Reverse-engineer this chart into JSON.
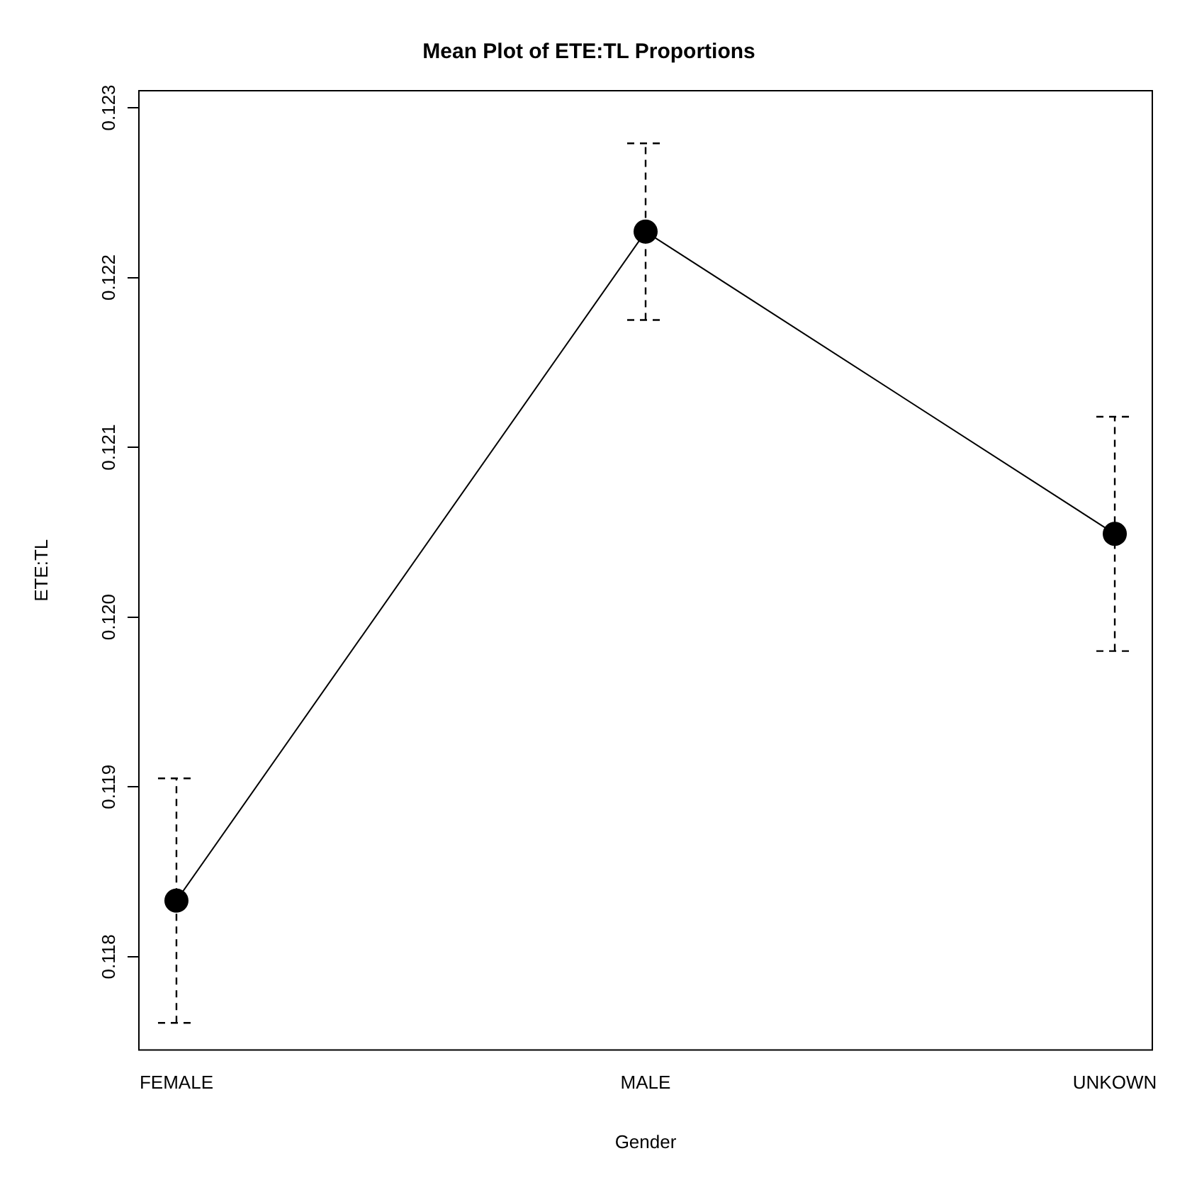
{
  "chart_data": {
    "type": "line",
    "title": "Mean Plot of ETE:TL Proportions",
    "xlabel": "Gender",
    "ylabel": "ETE:TL",
    "categories": [
      "FEMALE",
      "MALE",
      "UNKOWN"
    ],
    "series": [
      {
        "color": "#000000",
        "values": [
          0.11833,
          0.12227,
          0.12049
        ],
        "errors": [
          0.00072,
          0.00052,
          0.00069
        ]
      }
    ],
    "ylim": [
      0.11745,
      0.1231
    ],
    "yticks": [
      0.118,
      0.119,
      {
        "value": 0.12,
        "label": "0.120"
      },
      0.121,
      0.122,
      0.123
    ],
    "grid": false,
    "legend": false,
    "marker": "circle",
    "line_style": "solid"
  }
}
